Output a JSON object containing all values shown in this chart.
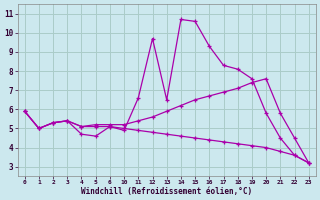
{
  "xlabel": "Windchill (Refroidissement éolien,°C)",
  "background_color": "#cce8ee",
  "grid_color": "#aaccc8",
  "line_color": "#aa00aa",
  "x_labels": [
    0,
    1,
    2,
    3,
    4,
    5,
    6,
    10,
    11,
    12,
    13,
    14,
    15,
    16,
    17,
    18,
    19,
    20,
    21,
    22,
    23
  ],
  "ylim": [
    2.5,
    11.5
  ],
  "yticks": [
    3,
    4,
    5,
    6,
    7,
    8,
    9,
    10,
    11
  ],
  "series": [
    {
      "y": [
        5.9,
        5.0,
        5.3,
        5.4,
        4.7,
        4.6,
        5.1,
        4.9,
        6.6,
        9.7,
        6.5,
        10.7,
        10.6,
        9.3,
        8.3,
        8.1,
        7.6,
        5.8,
        4.5,
        3.6,
        3.2
      ]
    },
    {
      "y": [
        5.9,
        5.0,
        5.3,
        5.4,
        5.1,
        5.2,
        5.2,
        5.2,
        5.4,
        5.6,
        5.9,
        6.2,
        6.5,
        6.7,
        6.9,
        7.1,
        7.4,
        7.6,
        5.8,
        4.5,
        3.2
      ]
    },
    {
      "y": [
        5.9,
        5.0,
        5.3,
        5.4,
        5.1,
        5.1,
        5.1,
        5.0,
        4.9,
        4.8,
        4.7,
        4.6,
        4.5,
        4.4,
        4.3,
        4.2,
        4.1,
        4.0,
        3.8,
        3.6,
        3.2
      ]
    }
  ]
}
